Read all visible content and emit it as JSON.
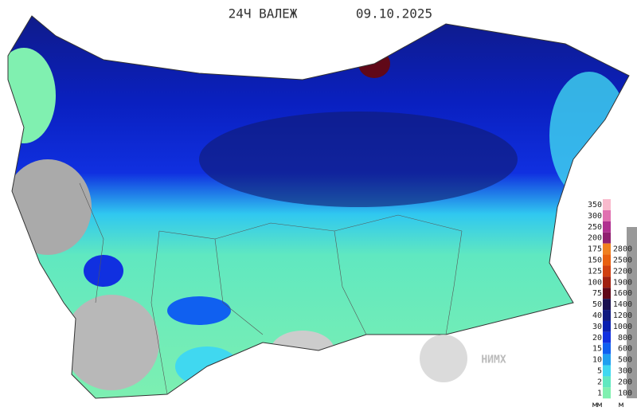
{
  "header": {
    "title": "24Ч ВАЛЕЖ",
    "date": "09.10.2025"
  },
  "logo": {
    "text": "НИМХ"
  },
  "legend": {
    "precipitation": {
      "unit": "мм",
      "items": [
        {
          "label": "350",
          "color": "#f9b9cc"
        },
        {
          "label": "300",
          "color": "#e070b0"
        },
        {
          "label": "250",
          "color": "#b03090"
        },
        {
          "label": "200",
          "color": "#902070"
        },
        {
          "label": "175",
          "color": "#f08020"
        },
        {
          "label": "150",
          "color": "#e86010"
        },
        {
          "label": "125",
          "color": "#d04010"
        },
        {
          "label": "100",
          "color": "#a02010"
        },
        {
          "label": "75",
          "color": "#600818"
        },
        {
          "label": "50",
          "color": "#1a1050"
        },
        {
          "label": "40",
          "color": "#101a80"
        },
        {
          "label": "30",
          "color": "#0a20b0"
        },
        {
          "label": "20",
          "color": "#1030e0"
        },
        {
          "label": "15",
          "color": "#1060f0"
        },
        {
          "label": "10",
          "color": "#20a0f0"
        },
        {
          "label": "5",
          "color": "#40d8f0"
        },
        {
          "label": "2",
          "color": "#60e8c0"
        },
        {
          "label": "1",
          "color": "#80f0b0"
        }
      ]
    },
    "elevation": {
      "unit": "м",
      "items": [
        "2800",
        "2500",
        "2200",
        "1900",
        "1600",
        "1400",
        "1200",
        "1000",
        "800",
        "600",
        "500",
        "300",
        "200",
        "100"
      ]
    }
  }
}
